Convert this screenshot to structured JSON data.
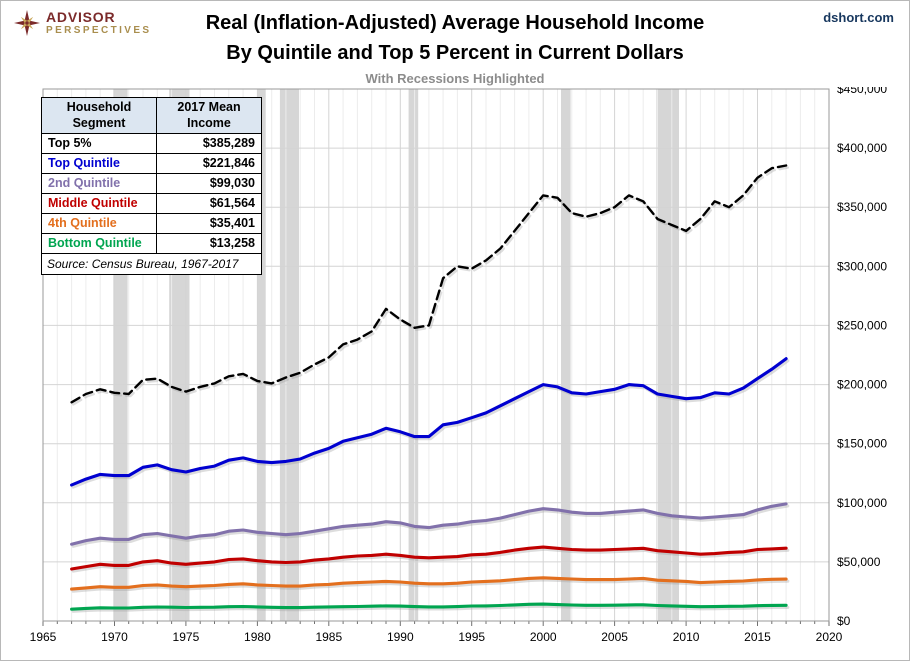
{
  "header": {
    "logo_line1": "ADVISOR",
    "logo_line2": "PERSPECTIVES",
    "title_line1": "Real (Inflation-Adjusted) Average Household Income",
    "title_line2": "By Quintile and Top 5 Percent in Current Dollars",
    "subtitle": "With Recessions Highlighted",
    "watermark": "dshort.com"
  },
  "legend_table": {
    "col1_header": "Household Segment",
    "col2_header": "2017 Mean Income",
    "rows": [
      {
        "label": "Top 5%",
        "value": "$385,289",
        "color": "#000000"
      },
      {
        "label": "Top Quintile",
        "value": "$221,846",
        "color": "#0000D0"
      },
      {
        "label": "2nd Quintile",
        "value": "$99,030",
        "color": "#8171AB"
      },
      {
        "label": "Middle Quintile",
        "value": "$61,564",
        "color": "#C00000"
      },
      {
        "label": "4th Quintile",
        "value": "$35,401",
        "color": "#E36F1E"
      },
      {
        "label": "Bottom Quintile",
        "value": "$13,258",
        "color": "#00A550"
      }
    ],
    "source": "Source: Census Bureau, 1967-2017"
  },
  "chart_data": {
    "type": "line",
    "title": "Real (Inflation-Adjusted) Average Household Income By Quintile and Top 5 Percent in Current Dollars",
    "subtitle": "With Recessions Highlighted",
    "xlim": [
      1965,
      2020
    ],
    "ylim": [
      0,
      450000
    ],
    "grid": true,
    "legend_position": "top-left-table",
    "x_ticks": [
      1965,
      1970,
      1975,
      1980,
      1985,
      1990,
      1995,
      2000,
      2005,
      2010,
      2015,
      2020
    ],
    "y_tick_values": [
      0,
      50000,
      100000,
      150000,
      200000,
      250000,
      300000,
      350000,
      400000,
      450000
    ],
    "y_tick_labels": [
      "$0",
      "$50,000",
      "$100,000",
      "$150,000",
      "$200,000",
      "$250,000",
      "$300,000",
      "$350,000",
      "$400,000",
      "$450,000"
    ],
    "recessions": [
      [
        1969.92,
        1970.92
      ],
      [
        1973.83,
        1975.25
      ],
      [
        1980.0,
        1980.58
      ],
      [
        1981.58,
        1982.92
      ],
      [
        1990.58,
        1991.25
      ],
      [
        2001.25,
        2001.92
      ],
      [
        2007.92,
        2009.5
      ]
    ],
    "colors": {
      "recession_band": "#D6D6D6",
      "gridline_minor": "#ECECEC",
      "gridline_major": "#D4D4D4",
      "plot_border": "#9A9A9A",
      "tick": "#707070",
      "label": "#000000"
    },
    "x": [
      1967,
      1968,
      1969,
      1970,
      1971,
      1972,
      1973,
      1974,
      1975,
      1976,
      1977,
      1978,
      1979,
      1980,
      1981,
      1982,
      1983,
      1984,
      1985,
      1986,
      1987,
      1988,
      1989,
      1990,
      1991,
      1992,
      1993,
      1994,
      1995,
      1996,
      1997,
      1998,
      1999,
      2000,
      2001,
      2002,
      2003,
      2004,
      2005,
      2006,
      2007,
      2008,
      2009,
      2010,
      2011,
      2012,
      2013,
      2014,
      2015,
      2016,
      2017
    ],
    "series": [
      {
        "id": "top-5-percent",
        "name": "Top 5%",
        "color": "#000000",
        "dashed": true,
        "values": [
          185000,
          192000,
          196000,
          193000,
          192000,
          204000,
          205000,
          198000,
          194000,
          198000,
          201000,
          207000,
          209000,
          203000,
          201000,
          206000,
          210000,
          217000,
          223000,
          234000,
          238000,
          245000,
          264000,
          255000,
          248000,
          250000,
          290000,
          300000,
          298000,
          305000,
          315000,
          330000,
          345000,
          360000,
          358000,
          345000,
          342000,
          345000,
          350000,
          360000,
          355000,
          340000,
          335000,
          330000,
          340000,
          355000,
          350000,
          360000,
          375000,
          383000,
          385289
        ]
      },
      {
        "id": "top-quintile",
        "name": "Top Quintile",
        "color": "#0000D0",
        "dashed": false,
        "values": [
          115000,
          120000,
          124000,
          123000,
          123000,
          130000,
          132000,
          128000,
          126000,
          129000,
          131000,
          136000,
          138000,
          135000,
          134000,
          135000,
          137000,
          142000,
          146000,
          152000,
          155000,
          158000,
          163000,
          160000,
          156000,
          156000,
          166000,
          168000,
          172000,
          176000,
          182000,
          188000,
          194000,
          200000,
          198000,
          193000,
          192000,
          194000,
          196000,
          200000,
          199000,
          192000,
          190000,
          188000,
          189000,
          193000,
          192000,
          197000,
          205000,
          213000,
          221846
        ]
      },
      {
        "id": "second-quintile",
        "name": "2nd Quintile",
        "color": "#8171AB",
        "dashed": false,
        "values": [
          65000,
          68000,
          70000,
          69000,
          69000,
          73000,
          74000,
          72000,
          70000,
          72000,
          73000,
          76000,
          77000,
          75000,
          74000,
          73000,
          74000,
          76000,
          78000,
          80000,
          81000,
          82000,
          84000,
          83000,
          80000,
          79000,
          81000,
          82000,
          84000,
          85000,
          87000,
          90000,
          93000,
          95000,
          94000,
          92000,
          91000,
          91000,
          92000,
          93000,
          94000,
          91000,
          89000,
          88000,
          87000,
          88000,
          89000,
          90000,
          94000,
          97000,
          99030
        ]
      },
      {
        "id": "middle-quintile",
        "name": "Middle Quintile",
        "color": "#C00000",
        "dashed": false,
        "values": [
          44000,
          46000,
          48000,
          47000,
          47000,
          50000,
          51000,
          49000,
          48000,
          49000,
          50000,
          52000,
          52500,
          51000,
          50000,
          49500,
          50000,
          51500,
          52500,
          54000,
          55000,
          55500,
          56500,
          55500,
          54000,
          53500,
          54000,
          54500,
          56000,
          56500,
          58000,
          60000,
          61500,
          62500,
          61500,
          60500,
          60000,
          60000,
          60500,
          61000,
          61500,
          59500,
          58500,
          57500,
          56500,
          57000,
          58000,
          58500,
          60500,
          61000,
          61564
        ]
      },
      {
        "id": "fourth-quintile",
        "name": "4th Quintile",
        "color": "#E36F1E",
        "dashed": false,
        "values": [
          27000,
          28000,
          29000,
          28500,
          28500,
          30000,
          30500,
          29500,
          29000,
          29500,
          30000,
          31000,
          31500,
          30500,
          30000,
          29500,
          29500,
          30500,
          31000,
          32000,
          32500,
          33000,
          33500,
          33000,
          32000,
          31500,
          31500,
          32000,
          33000,
          33500,
          34000,
          35000,
          36000,
          36500,
          36000,
          35500,
          35000,
          35000,
          35000,
          35500,
          36000,
          34500,
          34000,
          33500,
          32500,
          33000,
          33500,
          33800,
          34800,
          35300,
          35401
        ]
      },
      {
        "id": "bottom-quintile",
        "name": "Bottom Quintile",
        "color": "#00A550",
        "dashed": false,
        "values": [
          10000,
          10700,
          11200,
          11000,
          11000,
          11600,
          11800,
          11700,
          11400,
          11600,
          11700,
          12100,
          12300,
          11900,
          11600,
          11300,
          11300,
          11700,
          11900,
          12100,
          12300,
          12500,
          12800,
          12600,
          12200,
          11900,
          11900,
          12200,
          12700,
          12800,
          13100,
          13600,
          14100,
          14300,
          13900,
          13500,
          13300,
          13300,
          13400,
          13600,
          13700,
          13100,
          12800,
          12400,
          12100,
          12200,
          12400,
          12500,
          12900,
          13200,
          13258
        ]
      }
    ]
  }
}
